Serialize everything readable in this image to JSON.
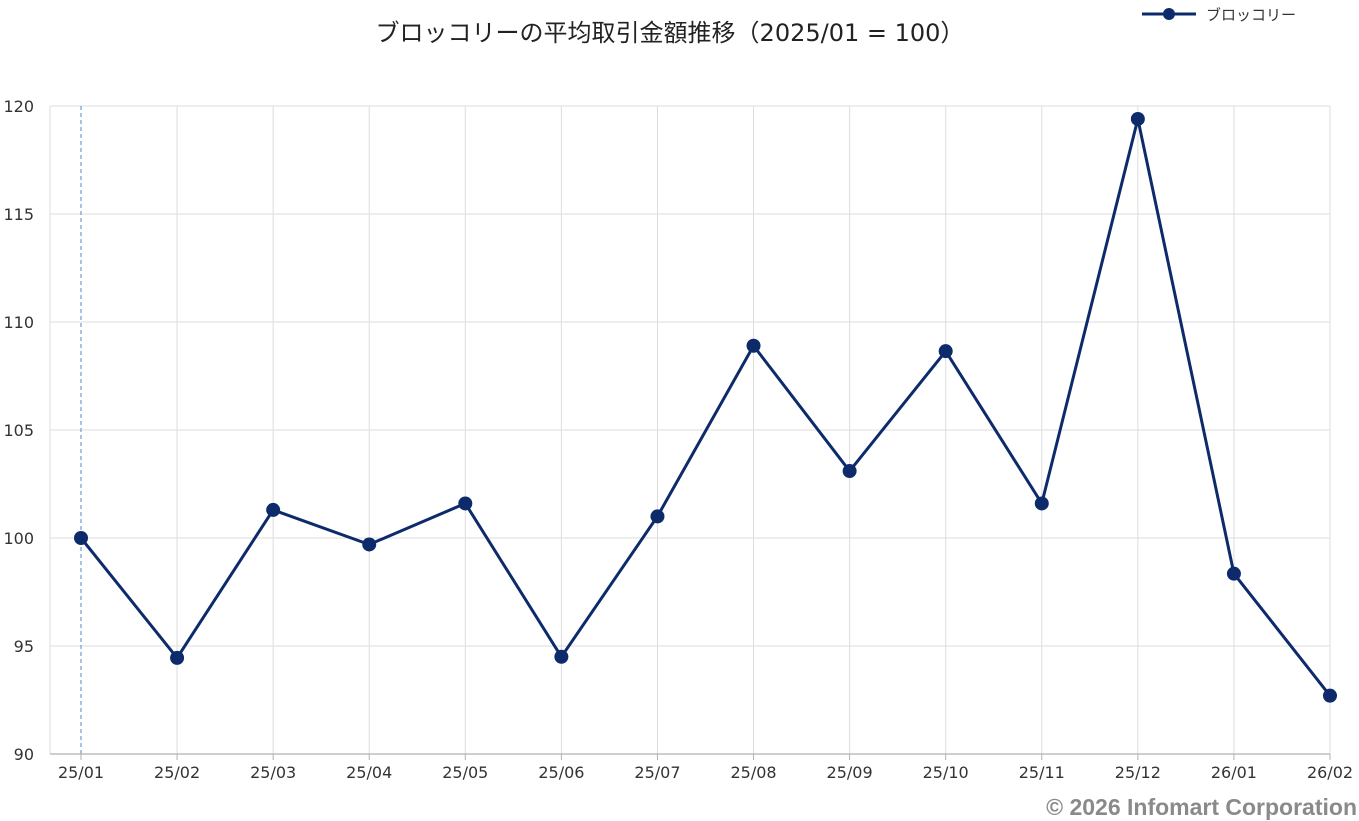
{
  "chart_data": {
    "type": "line",
    "title": "ブロッコリーの平均取引金額推移（2025/01 = 100）",
    "xlabel": "",
    "ylabel": "",
    "categories": [
      "25/01",
      "25/02",
      "25/03",
      "25/04",
      "25/05",
      "25/06",
      "25/07",
      "25/08",
      "25/09",
      "25/10",
      "25/11",
      "25/12",
      "26/01",
      "26/02"
    ],
    "series": [
      {
        "name": "ブロッコリー",
        "values": [
          100.0,
          94.45,
          101.3,
          99.7,
          101.6,
          94.5,
          101.0,
          108.9,
          103.1,
          108.65,
          101.6,
          119.4,
          98.35,
          92.7
        ]
      }
    ],
    "ylim": [
      90,
      120
    ],
    "yticks": [
      90,
      95,
      100,
      105,
      110,
      115,
      120
    ],
    "grid": true,
    "legend": "top-right",
    "reference_line": "25/01",
    "colors": {
      "series": "#0d2a6b",
      "grid": "#dddddd",
      "reference": "#7aa5d6",
      "axis": "#b0b0b0"
    }
  },
  "footer": {
    "copyright": "© 2026 Infomart Corporation"
  }
}
